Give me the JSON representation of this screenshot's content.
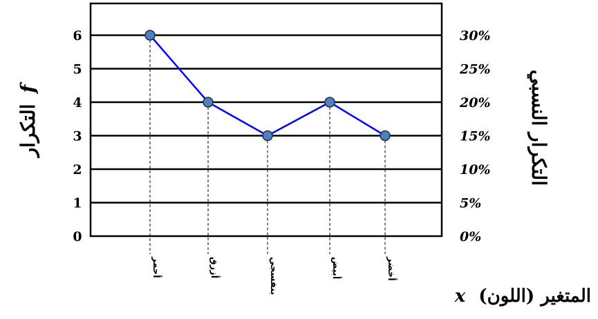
{
  "chart_data": {
    "type": "line",
    "categories": [
      "أحمر",
      "أزرق",
      "بنفسجي",
      "أبيض",
      "أخضر"
    ],
    "values": [
      6,
      4,
      3,
      4,
      3
    ],
    "ylim": [
      0,
      6
    ],
    "y_ticks": [
      0,
      1,
      2,
      3,
      4,
      5,
      6
    ],
    "y2_ticks": [
      "0%",
      "5%",
      "10%",
      "15%",
      "20%",
      "25%",
      "30%"
    ],
    "ylabel": "التكرار",
    "ylabel_symbol": "f",
    "y2label": "التكرار النسبي",
    "xlabel": "المتغير (اللون)",
    "xlabel_symbol": "x",
    "grid": true,
    "line_color": "#0000ff",
    "marker_color": "#4f81bd"
  }
}
